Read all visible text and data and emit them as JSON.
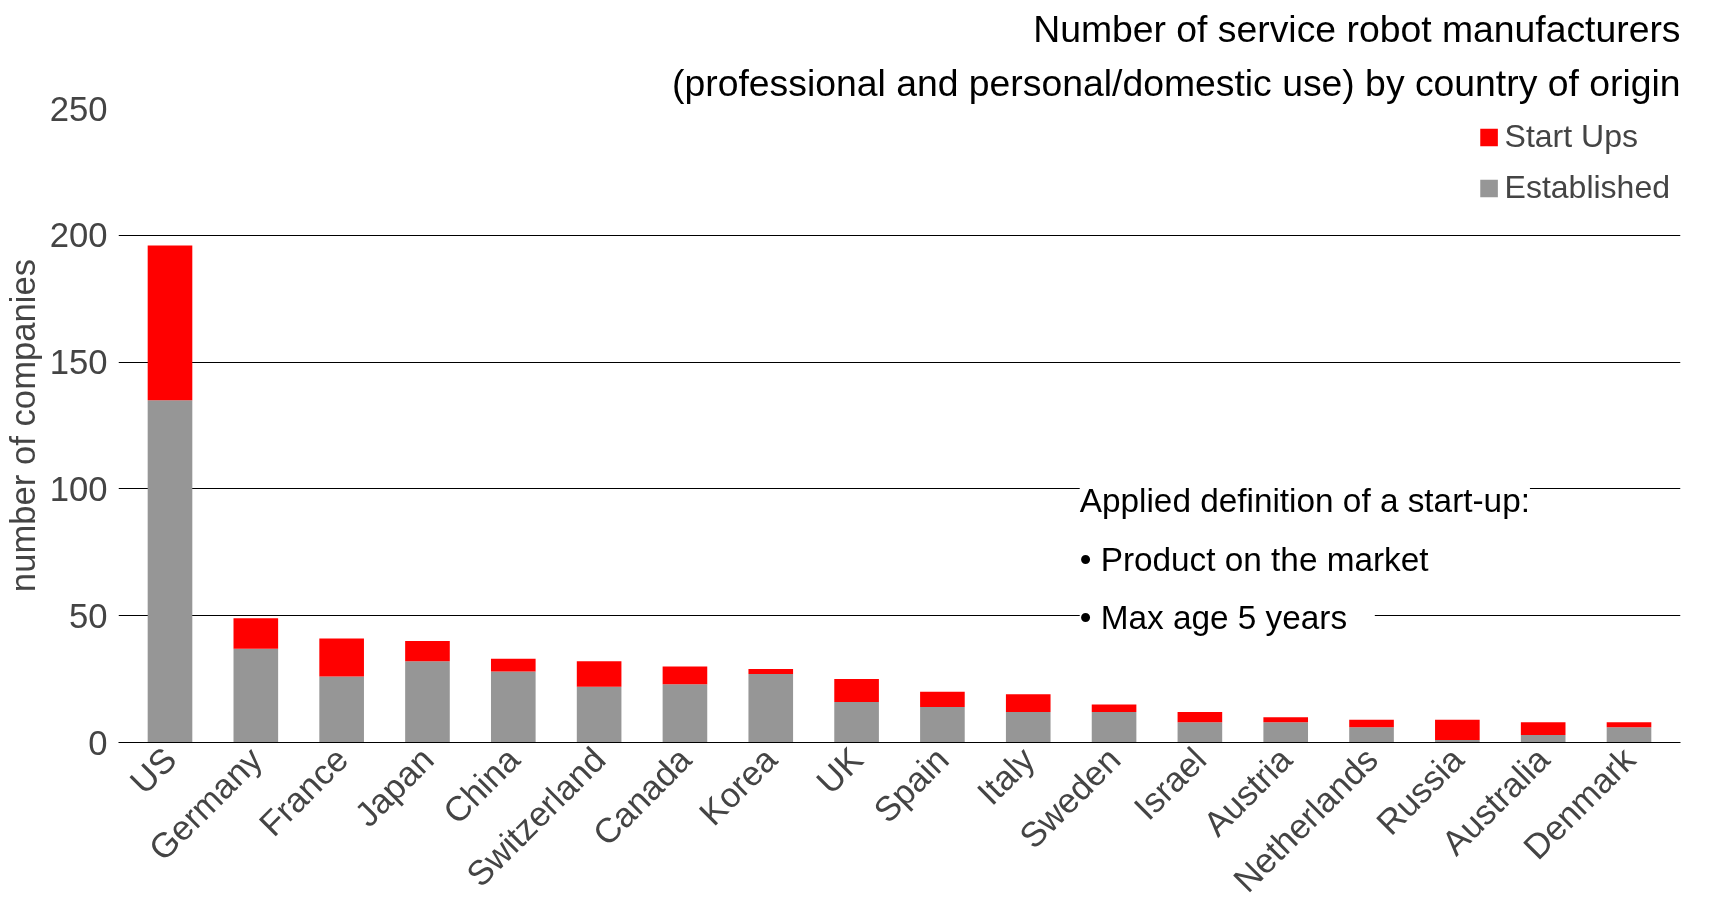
{
  "chart_data": {
    "type": "bar",
    "title": "Number of service robot manufacturers",
    "subtitle": "(professional and personal/domestic use) by country of origin",
    "ylabel": "number of companies",
    "categories": [
      "US",
      "Germany",
      "France",
      "Japan",
      "China",
      "Switzerland",
      "Canada",
      "Korea",
      "UK",
      "Spain",
      "Italy",
      "Sweden",
      "Israel",
      "Austria",
      "Netherlands",
      "Russia",
      "Australia",
      "Denmark"
    ],
    "stacked": true,
    "series": [
      {
        "name": "Established",
        "color": "#969696",
        "values": [
          135,
          37,
          26,
          32,
          28,
          22,
          23,
          27,
          16,
          14,
          12,
          12,
          8,
          8,
          6,
          1,
          3,
          6
        ]
      },
      {
        "name": "Start Ups",
        "color": "#ff0000",
        "values": [
          61,
          12,
          15,
          8,
          5,
          10,
          7,
          2,
          9,
          6,
          7,
          3,
          4,
          2,
          3,
          8,
          5,
          2
        ]
      }
    ],
    "ylim": [
      0,
      250
    ],
    "yticks": [
      0,
      50,
      100,
      150,
      200,
      250
    ],
    "grid": "y",
    "legend": "top right",
    "annotations": [
      "Applied definition of a start-up:",
      "•    Product on the market",
      "•    Max age 5 years"
    ]
  }
}
